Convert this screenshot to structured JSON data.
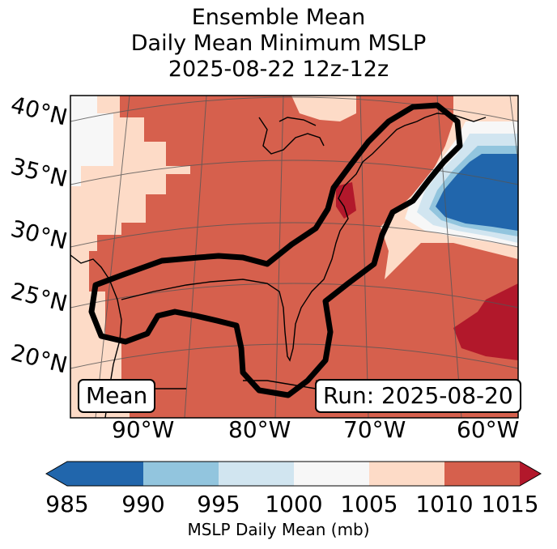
{
  "title": {
    "line1": "Ensemble Mean",
    "line2": "Daily Mean Minimum MSLP",
    "line3": "2025-08-22 12z-12z"
  },
  "map": {
    "lat_labels": [
      "40°N",
      "35°N",
      "30°N",
      "25°N",
      "20°N"
    ],
    "lon_labels": [
      "90°W",
      "80°W",
      "70°W",
      "60°W"
    ],
    "mean_label": "Mean",
    "run_label": "Run: 2025-08-20",
    "colors": {
      "c985_990": "#2166ac",
      "c990_995": "#92c5de",
      "c995_1000": "#d1e5f0",
      "c1000_1005": "#f7f7f7",
      "c1005_1010": "#fddbc7",
      "c1010_1015": "#d6604d",
      "over": "#b2182b",
      "under": "#2166ac"
    }
  },
  "colorbar": {
    "title": "MSLP Daily Mean (mb)",
    "ticks": [
      "985",
      "990",
      "995",
      "1000",
      "1005",
      "1010",
      "1015"
    ]
  }
}
